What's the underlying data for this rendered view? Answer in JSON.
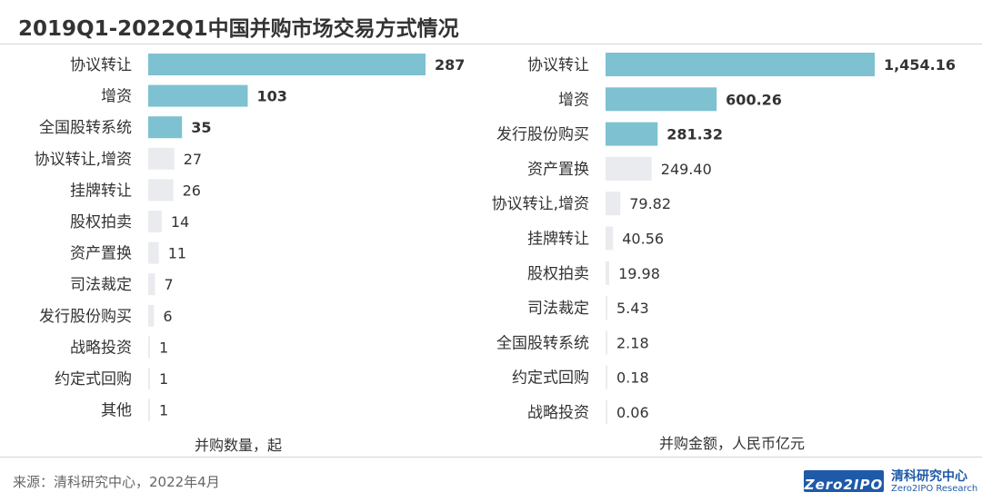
{
  "title": "2019Q1-2022Q1中国并购市场交易方式情况",
  "source": "来源：清科研究中心，2022年4月",
  "logo": {
    "box_text": "Zero2IPO",
    "cn": "清科研究中心",
    "en": "Zero2IPO Research"
  },
  "colors": {
    "highlight": "#7ec1d1",
    "normal": "#e9ebee",
    "text": "#333333"
  },
  "chart_data": [
    {
      "type": "bar",
      "orientation": "horizontal",
      "xlabel": "并购数量，起",
      "categories": [
        "协议转让",
        "增资",
        "全国股转系统",
        "协议转让,增资",
        "挂牌转让",
        "股权拍卖",
        "资产置换",
        "司法裁定",
        "发行股份购买",
        "战略投资",
        "约定式回购",
        "其他"
      ],
      "values": [
        287,
        103,
        35,
        27,
        26,
        14,
        11,
        7,
        6,
        1,
        1,
        1
      ],
      "value_labels": [
        "287",
        "103",
        "35",
        "27",
        "26",
        "14",
        "11",
        "7",
        "6",
        "1",
        "1",
        "1"
      ],
      "highlighted": [
        true,
        true,
        true,
        false,
        false,
        false,
        false,
        false,
        false,
        false,
        false,
        false
      ],
      "xlim": [
        0,
        287
      ]
    },
    {
      "type": "bar",
      "orientation": "horizontal",
      "xlabel": "并购金额，人民币亿元",
      "categories": [
        "协议转让",
        "增资",
        "发行股份购买",
        "资产置换",
        "协议转让,增资",
        "挂牌转让",
        "股权拍卖",
        "司法裁定",
        "全国股转系统",
        "约定式回购",
        "战略投资"
      ],
      "values": [
        1454.16,
        600.26,
        281.32,
        249.4,
        79.82,
        40.56,
        19.98,
        5.43,
        2.18,
        0.18,
        0.06
      ],
      "value_labels": [
        "1,454.16",
        "600.26",
        "281.32",
        "249.40",
        "79.82",
        "40.56",
        "19.98",
        "5.43",
        "2.18",
        "0.18",
        "0.06"
      ],
      "highlighted": [
        true,
        true,
        true,
        false,
        false,
        false,
        false,
        false,
        false,
        false,
        false
      ],
      "xlim": [
        0,
        1454.16
      ]
    }
  ]
}
